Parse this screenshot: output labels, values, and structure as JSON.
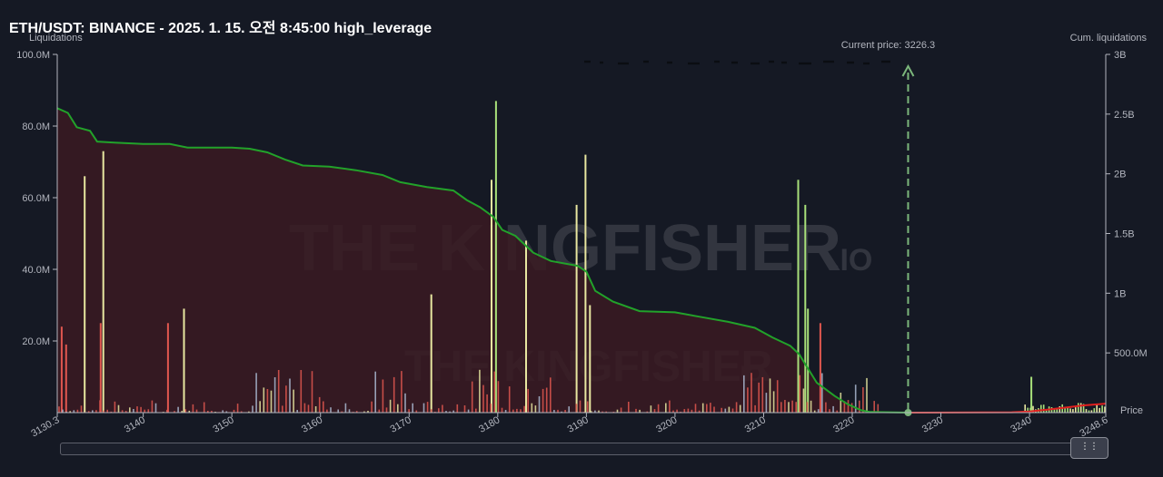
{
  "title": "ETH/USDT: BINANCE - 2025. 1. 15. 오전 8:45:00 high_leverage",
  "colors": {
    "background": "#151924",
    "cum_long_line": "#22a22a",
    "cum_short_line": "#e0201f",
    "cum_fill": "#3a1a22",
    "bar_red": "#e0574f",
    "bar_yellow": "#e8e7a0",
    "bar_blue": "#a9b8d0",
    "bar_green": "#a8e07a",
    "price_marker": "#7bb67b"
  },
  "watermark": {
    "main": "THE KINGFISHER",
    "suffix": ".IO"
  },
  "chart_data": {
    "type": "bar",
    "xlabel": "Price",
    "ylabel_left": "Liquidations",
    "ylabel_right": "Cum. liquidations",
    "xlim": [
      3130.3,
      3248.6
    ],
    "x_ticks": [
      "3130.3",
      "3140",
      "3150",
      "3160",
      "3170",
      "3180",
      "3190",
      "3200",
      "3210",
      "3220",
      "3230",
      "3240",
      "3248.6"
    ],
    "ylim_left": [
      0,
      100000000
    ],
    "y_ticks_left": [
      "20.0M",
      "40.0M",
      "60.0M",
      "80.0M",
      "100.0M"
    ],
    "ylim_right": [
      0,
      3000000000
    ],
    "y_ticks_right": [
      "500.0M",
      "1B",
      "1.5B",
      "2B",
      "2.5B",
      "3B"
    ],
    "current_price": {
      "label": "Current price: 3226.3",
      "value": 3226.3
    },
    "cumulative_long": [
      [
        3130.3,
        2550000000
      ],
      [
        3131.5,
        2510000000
      ],
      [
        3132.5,
        2390000000
      ],
      [
        3134,
        2360000000
      ],
      [
        3134.8,
        2270000000
      ],
      [
        3137,
        2260000000
      ],
      [
        3140,
        2250000000
      ],
      [
        3143,
        2250000000
      ],
      [
        3145,
        2220000000
      ],
      [
        3150,
        2220000000
      ],
      [
        3152,
        2210000000
      ],
      [
        3154,
        2180000000
      ],
      [
        3156,
        2120000000
      ],
      [
        3158,
        2070000000
      ],
      [
        3161,
        2060000000
      ],
      [
        3164,
        2030000000
      ],
      [
        3167,
        1990000000
      ],
      [
        3169,
        1930000000
      ],
      [
        3172,
        1890000000
      ],
      [
        3175,
        1860000000
      ],
      [
        3176.5,
        1780000000
      ],
      [
        3178,
        1720000000
      ],
      [
        3179.5,
        1640000000
      ],
      [
        3180.5,
        1530000000
      ],
      [
        3182,
        1480000000
      ],
      [
        3184,
        1340000000
      ],
      [
        3186,
        1270000000
      ],
      [
        3189,
        1230000000
      ],
      [
        3190,
        1180000000
      ],
      [
        3191,
        1020000000
      ],
      [
        3193,
        930000000
      ],
      [
        3196,
        850000000
      ],
      [
        3200,
        840000000
      ],
      [
        3203,
        800000000
      ],
      [
        3206,
        760000000
      ],
      [
        3209,
        710000000
      ],
      [
        3211,
        630000000
      ],
      [
        3213,
        560000000
      ],
      [
        3214,
        490000000
      ],
      [
        3215,
        370000000
      ],
      [
        3216,
        250000000
      ],
      [
        3218,
        140000000
      ],
      [
        3219.5,
        70000000
      ],
      [
        3221,
        20000000
      ],
      [
        3222,
        5000000
      ],
      [
        3226.3,
        0
      ]
    ],
    "cumulative_short": [
      [
        3226.3,
        0
      ],
      [
        3238,
        3000000
      ],
      [
        3240,
        10000000
      ],
      [
        3242,
        25000000
      ],
      [
        3244,
        42000000
      ],
      [
        3246,
        60000000
      ],
      [
        3248.6,
        75000000
      ]
    ],
    "notable_liquidation_bars": [
      {
        "price": 3130.8,
        "value": 24000000,
        "color": "red"
      },
      {
        "price": 3131.3,
        "value": 19000000,
        "color": "red"
      },
      {
        "price": 3133.4,
        "value": 66000000,
        "color": "yellow"
      },
      {
        "price": 3135.2,
        "value": 25000000,
        "color": "red"
      },
      {
        "price": 3135.5,
        "value": 73000000,
        "color": "yellow"
      },
      {
        "price": 3142.8,
        "value": 25000000,
        "color": "red"
      },
      {
        "price": 3144.6,
        "value": 29000000,
        "color": "yellow"
      },
      {
        "price": 3172.5,
        "value": 33000000,
        "color": "yellow"
      },
      {
        "price": 3179.3,
        "value": 65000000,
        "color": "yellow"
      },
      {
        "price": 3179.8,
        "value": 87000000,
        "color": "green"
      },
      {
        "price": 3183.2,
        "value": 48000000,
        "color": "yellow"
      },
      {
        "price": 3188.9,
        "value": 58000000,
        "color": "yellow"
      },
      {
        "price": 3189.9,
        "value": 72000000,
        "color": "yellow"
      },
      {
        "price": 3190.4,
        "value": 30000000,
        "color": "yellow"
      },
      {
        "price": 3213.9,
        "value": 65000000,
        "color": "green"
      },
      {
        "price": 3214.7,
        "value": 58000000,
        "color": "green"
      },
      {
        "price": 3215.0,
        "value": 29000000,
        "color": "green"
      },
      {
        "price": 3216.4,
        "value": 25000000,
        "color": "red"
      },
      {
        "price": 3240.2,
        "value": 10000000,
        "color": "green"
      }
    ]
  }
}
